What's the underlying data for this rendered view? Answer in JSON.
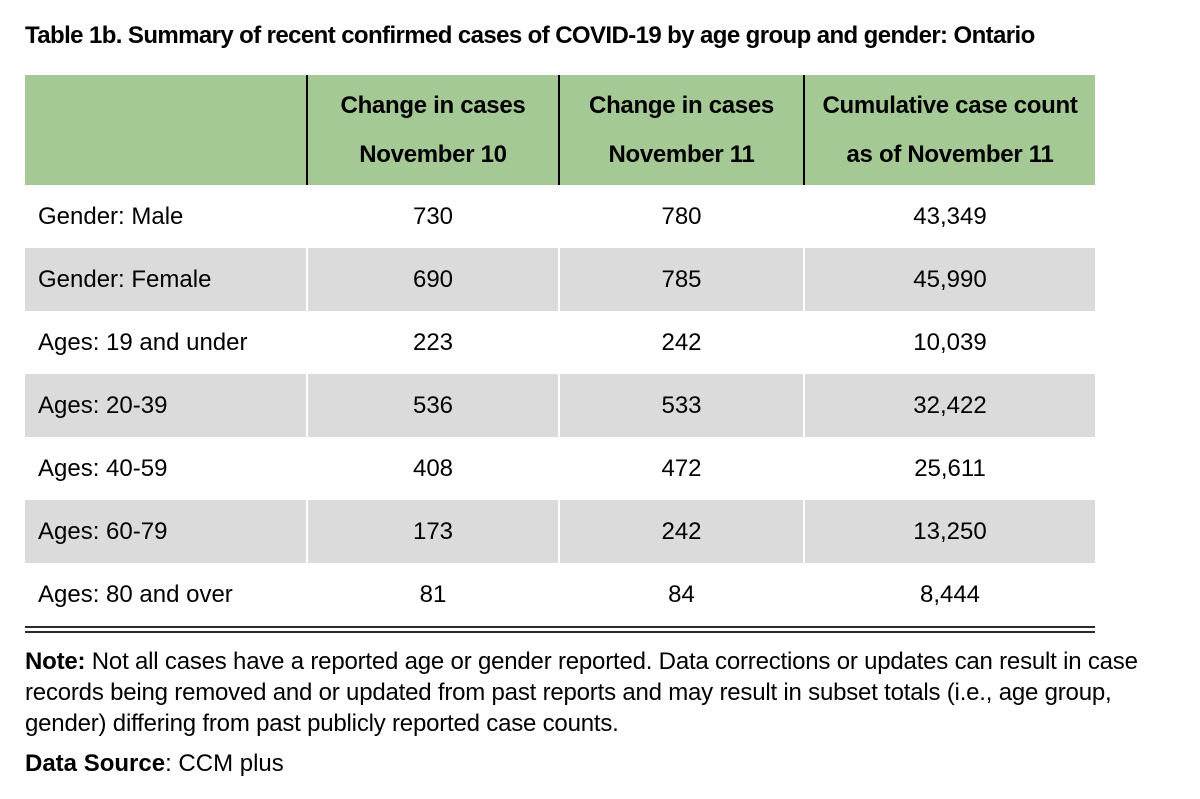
{
  "title": "Table 1b. Summary of recent confirmed cases of COVID-19 by age group and gender: Ontario",
  "colors": {
    "header_green": "#A5C995",
    "row_gray": "#DBDBDB",
    "line_black": "#000000",
    "rule_gray": "#2b2b2b"
  },
  "table": {
    "headers": [
      {
        "line1": "Change in cases",
        "line2": "November 10"
      },
      {
        "line1": "Change in cases",
        "line2": "November 11"
      },
      {
        "line1": "Cumulative case count",
        "line2": "as of November 11"
      }
    ],
    "rows": [
      {
        "label": "Gender: Male",
        "values": [
          "730",
          "780",
          "43,349"
        ]
      },
      {
        "label": "Gender: Female",
        "values": [
          "690",
          "785",
          "45,990"
        ]
      },
      {
        "label": "Ages: 19 and under",
        "values": [
          "223",
          "242",
          "10,039"
        ]
      },
      {
        "label": "Ages: 20-39",
        "values": [
          "536",
          "533",
          "32,422"
        ]
      },
      {
        "label": "Ages: 40-59",
        "values": [
          "408",
          "472",
          "25,611"
        ]
      },
      {
        "label": "Ages: 60-79",
        "values": [
          "173",
          "242",
          "13,250"
        ]
      },
      {
        "label": "Ages: 80 and over",
        "values": [
          "81",
          "84",
          "8,444"
        ]
      }
    ]
  },
  "chart_data": {
    "type": "table",
    "title": "Table 1b. Summary of recent confirmed cases of COVID-19 by age group and gender: Ontario",
    "columns": [
      "",
      "Change in cases November 10",
      "Change in cases November 11",
      "Cumulative case count as of November 11"
    ],
    "rows": [
      [
        "Gender: Male",
        730,
        780,
        43349
      ],
      [
        "Gender: Female",
        690,
        785,
        45990
      ],
      [
        "Ages: 19 and under",
        223,
        242,
        10039
      ],
      [
        "Ages: 20-39",
        536,
        533,
        32422
      ],
      [
        "Ages: 40-59",
        408,
        472,
        25611
      ],
      [
        "Ages: 60-79",
        173,
        242,
        13250
      ],
      [
        "Ages: 80 and over",
        81,
        84,
        8444
      ]
    ]
  },
  "note": {
    "label": "Note:",
    "text": " Not all cases have a reported age or gender reported. Data corrections or updates can result in case records being removed and or updated from past reports and may result in subset totals (i.e., age group, gender) differing from past publicly reported case counts."
  },
  "data_source": {
    "label": "Data Source",
    "text": ": CCM plus"
  }
}
